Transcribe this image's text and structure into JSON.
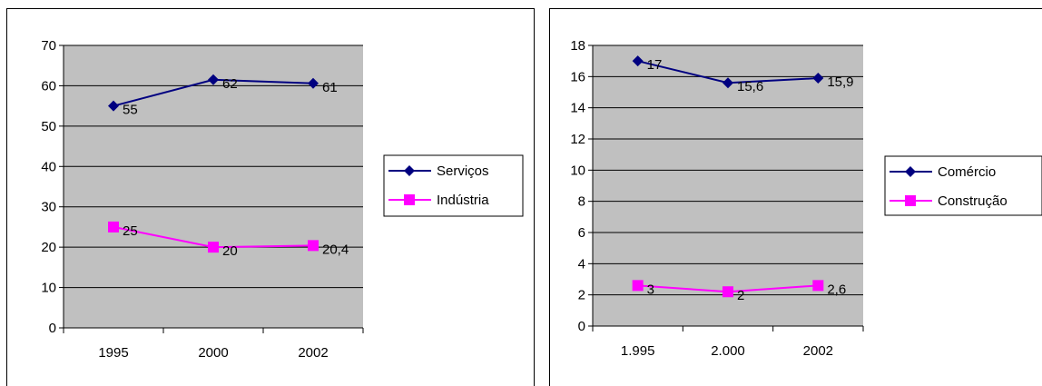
{
  "chart_data": [
    {
      "type": "line",
      "title": "",
      "xlabel": "",
      "ylabel": "",
      "categories": [
        "1995",
        "2000",
        "2002"
      ],
      "ylim": [
        0,
        70
      ],
      "yticks": [
        "0",
        "10",
        "20",
        "30",
        "40",
        "50",
        "60",
        "70"
      ],
      "grid": true,
      "legend_position": "right",
      "series": [
        {
          "name": "Serviços",
          "values": [
            55,
            61.5,
            60.6
          ],
          "labels": [
            "55",
            "62",
            "61"
          ],
          "color": "#000080",
          "marker": "diamond"
        },
        {
          "name": "Indústria",
          "values": [
            25,
            20,
            20.4
          ],
          "labels": [
            "25",
            "20",
            "20,4"
          ],
          "color": "#ff00ff",
          "marker": "square"
        }
      ]
    },
    {
      "type": "line",
      "title": "",
      "xlabel": "",
      "ylabel": "",
      "categories": [
        "1.995",
        "2.000",
        "2002"
      ],
      "ylim": [
        0,
        18
      ],
      "yticks": [
        "0",
        "2",
        "4",
        "6",
        "8",
        "10",
        "12",
        "14",
        "16",
        "18"
      ],
      "grid": true,
      "legend_position": "right",
      "series": [
        {
          "name": "Comércio",
          "values": [
            17,
            15.6,
            15.9
          ],
          "labels": [
            "17",
            "15,6",
            "15,9"
          ],
          "color": "#000080",
          "marker": "diamond"
        },
        {
          "name": "Construção",
          "values": [
            2.6,
            2.2,
            2.6
          ],
          "labels": [
            "3",
            "2",
            "2,6"
          ],
          "color": "#ff00ff",
          "marker": "square"
        }
      ]
    }
  ]
}
